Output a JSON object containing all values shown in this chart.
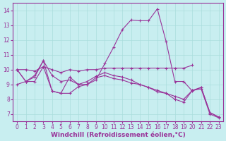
{
  "background_color": "#c8eef0",
  "grid_color": "#aadddd",
  "line_color": "#993399",
  "xlabel": "Windchill (Refroidissement éolien,°C)",
  "xlabel_fontsize": 6.5,
  "tick_fontsize": 5.5,
  "xlim": [
    -0.5,
    23.5
  ],
  "ylim": [
    6.5,
    14.5
  ],
  "yticks": [
    7,
    8,
    9,
    10,
    11,
    12,
    13,
    14
  ],
  "xticks": [
    0,
    1,
    2,
    3,
    4,
    5,
    6,
    7,
    8,
    9,
    10,
    11,
    12,
    13,
    14,
    15,
    16,
    17,
    18,
    19,
    20,
    21,
    22,
    23
  ],
  "lines": [
    {
      "x": [
        0,
        1,
        2,
        3,
        4,
        5,
        6,
        7,
        8,
        9,
        10,
        11,
        12,
        13,
        14,
        15,
        16,
        17,
        18,
        19,
        20,
        21,
        22,
        23
      ],
      "y": [
        10.0,
        9.2,
        9.2,
        10.2,
        8.55,
        8.4,
        8.4,
        8.85,
        9.0,
        9.3,
        10.4,
        11.5,
        12.7,
        13.35,
        13.3,
        13.3,
        14.1,
        11.9,
        9.2,
        9.2,
        8.55,
        8.8,
        7.1,
        6.8
      ]
    },
    {
      "x": [
        0,
        1,
        2,
        3,
        4,
        5,
        6,
        7,
        8,
        9,
        10,
        11,
        12,
        13,
        14,
        15,
        16,
        17,
        18,
        19,
        20
      ],
      "y": [
        10.0,
        10.0,
        9.9,
        10.2,
        10.0,
        9.8,
        10.0,
        9.9,
        10.0,
        10.0,
        10.1,
        10.1,
        10.1,
        10.1,
        10.1,
        10.1,
        10.1,
        10.1,
        10.1,
        10.1,
        10.3
      ]
    },
    {
      "x": [
        0,
        1,
        2,
        3,
        4,
        5,
        6,
        7,
        8,
        9,
        10,
        11,
        12,
        13,
        14,
        15,
        16,
        17,
        18,
        19,
        20,
        21,
        22,
        23
      ],
      "y": [
        10.0,
        9.2,
        9.5,
        10.6,
        9.6,
        9.2,
        9.3,
        9.0,
        9.2,
        9.55,
        9.8,
        9.6,
        9.5,
        9.3,
        9.0,
        8.8,
        8.6,
        8.4,
        8.2,
        8.0,
        8.6,
        8.8,
        7.1,
        6.8
      ]
    },
    {
      "x": [
        0,
        1,
        2,
        3,
        4,
        5,
        6,
        7,
        8,
        9,
        10,
        11,
        12,
        13,
        14,
        15,
        16,
        17,
        18,
        19,
        20,
        21,
        22,
        23
      ],
      "y": [
        9.0,
        9.2,
        9.6,
        10.6,
        8.55,
        8.4,
        9.5,
        9.0,
        9.0,
        9.45,
        9.6,
        9.4,
        9.3,
        9.1,
        9.0,
        8.8,
        8.5,
        8.4,
        8.0,
        7.8,
        8.6,
        8.7,
        7.0,
        6.75
      ]
    }
  ]
}
